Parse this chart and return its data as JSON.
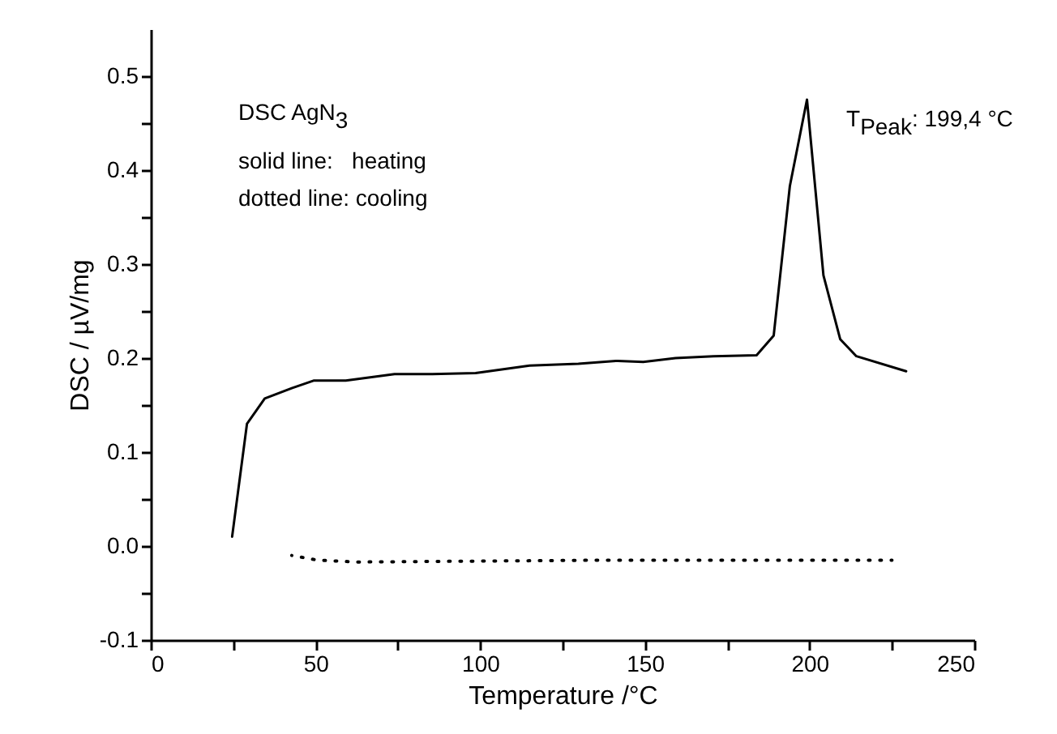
{
  "chart_data": {
    "type": "line",
    "xlabel": "Temperature /°C",
    "ylabel": "DSC / µV/mg",
    "annotations": [
      "DSC AgN$_{3}$",
      "solid line:   heating",
      "dotted line: cooling",
      "T$_{Peak}$: 199,4 °C"
    ],
    "series": [
      {
        "color": "#000000",
        "line_style": "solid",
        "x": [
          24.7,
          29.2,
          34.6,
          42.8,
          49.4,
          59.2,
          74,
          85.5,
          98.6,
          115,
          129.8,
          141.2,
          149.5,
          159.3,
          170.8,
          183.9,
          189.1,
          194,
          199.2,
          204.2,
          209.3,
          214.2,
          229.3
        ],
        "values": [
          0.01,
          0.13,
          0.157,
          0.168,
          0.176,
          0.176,
          0.183,
          0.183,
          0.184,
          0.192,
          0.194,
          0.197,
          0.196,
          0.2,
          0.202,
          0.203,
          0.224,
          0.383,
          0.475,
          0.288,
          0.22,
          0.202,
          0.186
        ]
      },
      {
        "color": "#000000",
        "line_style": "dotted",
        "x": [
          42.8,
          50.6,
          62.9,
          100,
          138.8,
          180,
          225
        ],
        "values": [
          -0.01,
          -0.015,
          -0.017,
          -0.016,
          -0.015,
          -0.015,
          -0.015
        ]
      }
    ],
    "xlim": [
      0,
      250
    ],
    "xticks": [
      0,
      {
        "value": 25,
        "label": null
      },
      50,
      {
        "value": 75,
        "label": null
      },
      100,
      {
        "value": 125,
        "label": null
      },
      150,
      {
        "value": 175,
        "label": null
      },
      200,
      {
        "value": 225,
        "label": null
      },
      250
    ],
    "ylim": [
      -0.1,
      0.55
    ],
    "yticks": [
      -0.1,
      {
        "value": -0.05,
        "label": null
      },
      {
        "value": 0,
        "label": "0.0"
      },
      {
        "value": 0.05,
        "label": null
      },
      0.1,
      {
        "value": 0.15,
        "label": null
      },
      0.2,
      {
        "value": 0.25,
        "label": null
      },
      0.3,
      {
        "value": 0.35,
        "label": null
      },
      0.4,
      {
        "value": 0.45,
        "label": null
      },
      0.5
    ],
    "grid": false,
    "marker": "none"
  }
}
